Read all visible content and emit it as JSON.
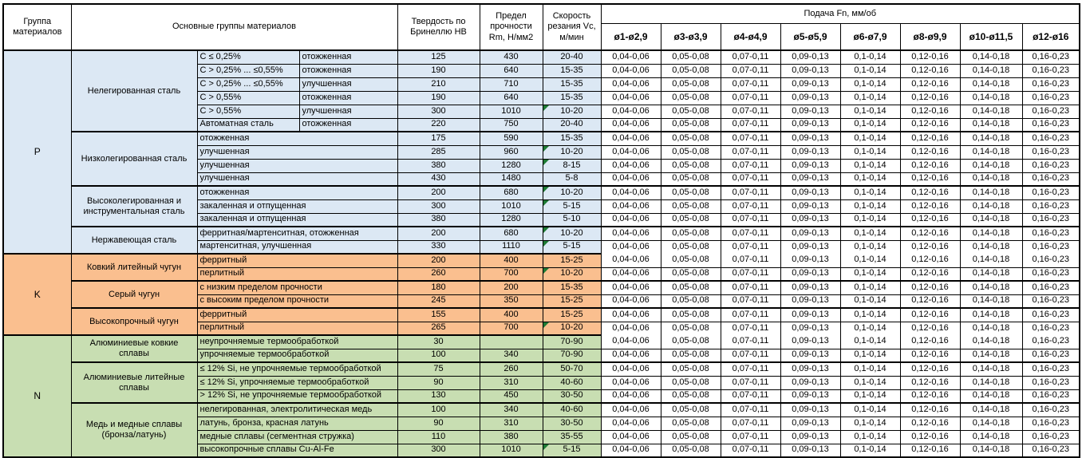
{
  "header": {
    "group": "Группа материалов",
    "main": "Основные группы материалов",
    "hardness": "Твердость по Бринеллю HB",
    "strength": "Предел прочности Rm, Н/мм2",
    "speed": "Скорость резания Vc, м/мин"
  },
  "feed": {
    "title": "Подача Fn, мм/об",
    "columns": [
      "ø1-ø2,9",
      "ø3-ø3,9",
      "ø4-ø4,9",
      "ø5-ø5,9",
      "ø6-ø7,9",
      "ø8-ø9,9",
      "ø10-ø11,5",
      "ø12-ø16"
    ],
    "values_all_rows": [
      "0,04-0,06",
      "0,05-0,08",
      "0,07-0,11",
      "0,09-0,13",
      "0,1-0,14",
      "0,12-0,16",
      "0,14-0,18",
      "0,16-0,23"
    ]
  },
  "colors": {
    "p_section": "#DCE8F4",
    "k_section": "#FABF8F",
    "n_section": "#C8DEB2",
    "flag_triangle": "#1E7B34"
  },
  "groups": [
    {
      "code": "P",
      "color": "#DCE8F4",
      "subgroups": [
        {
          "name": "Нелегированная сталь",
          "rows": [
            {
              "a": "C ≤ 0,25%",
              "b": "отожженная",
              "hb": "125",
              "rm": "430",
              "vc": "20-40"
            },
            {
              "a": "C > 0,25% ... ≤0,55%",
              "b": "отожженная",
              "hb": "190",
              "rm": "640",
              "vc": "15-35"
            },
            {
              "a": "C > 0,25% ... ≤0,55%",
              "b": "улучшенная",
              "hb": "210",
              "rm": "710",
              "vc": "15-35"
            },
            {
              "a": "C > 0,55%",
              "b": "отожженная",
              "hb": "190",
              "rm": "640",
              "vc": "15-35"
            },
            {
              "a": "C > 0,55%",
              "b": "улучшенная",
              "hb": "300",
              "rm": "1010",
              "vc": "10-20",
              "flag": true
            },
            {
              "a": "Автоматная сталь",
              "b": "отожженная",
              "hb": "220",
              "rm": "750",
              "vc": "20-40"
            }
          ]
        },
        {
          "name": "Низколегированная сталь",
          "rows": [
            {
              "a": "отожженная",
              "hb": "175",
              "rm": "590",
              "vc": "15-35"
            },
            {
              "a": "улучшенная",
              "hb": "285",
              "rm": "960",
              "vc": "10-20",
              "flag": true
            },
            {
              "a": "улучшенная",
              "hb": "380",
              "rm": "1280",
              "vc": "8-15",
              "flag": true
            },
            {
              "a": "улучшенная",
              "hb": "430",
              "rm": "1480",
              "vc": "5-8"
            }
          ]
        },
        {
          "name": "Высоколегированная и инструментальная сталь",
          "rows": [
            {
              "a": "отожженная",
              "hb": "200",
              "rm": "680",
              "vc": "10-20",
              "flag": true
            },
            {
              "a": "закаленная и отпущенная",
              "hb": "300",
              "rm": "1010",
              "vc": "5-15",
              "flag": true
            },
            {
              "a": "закаленная и отпущенная",
              "hb": "380",
              "rm": "1280",
              "vc": "5-10"
            }
          ]
        },
        {
          "name": "Нержавеющая сталь",
          "rows": [
            {
              "a": "ферритная/мартенситная, отожженная",
              "hb": "200",
              "rm": "680",
              "vc": "10-20",
              "flag": true
            },
            {
              "a": "мартенситная, улучшенная",
              "hb": "330",
              "rm": "1110",
              "vc": "5-15",
              "flag": true
            }
          ]
        }
      ]
    },
    {
      "code": "K",
      "color": "#FABF8F",
      "subgroups": [
        {
          "name": "Ковкий литейный чугун",
          "rows": [
            {
              "a": "ферритный",
              "hb": "200",
              "rm": "400",
              "vc": "15-25"
            },
            {
              "a": "перлитный",
              "hb": "260",
              "rm": "700",
              "vc": "10-20",
              "flag": true
            }
          ]
        },
        {
          "name": "Серый чугун",
          "rows": [
            {
              "a": "с низким пределом прочности",
              "hb": "180",
              "rm": "200",
              "vc": "15-35"
            },
            {
              "a": "с высоким пределом прочности",
              "hb": "245",
              "rm": "350",
              "vc": "15-25"
            }
          ]
        },
        {
          "name": "Высокопрочный чугун",
          "rows": [
            {
              "a": "ферритный",
              "hb": "155",
              "rm": "400",
              "vc": "15-25"
            },
            {
              "a": "перлитный",
              "hb": "265",
              "rm": "700",
              "vc": "10-20",
              "flag": true
            }
          ]
        }
      ]
    },
    {
      "code": "N",
      "color": "#C8DEB2",
      "subgroups": [
        {
          "name": "Алюминиевые ковкие сплавы",
          "rows": [
            {
              "a": "неупрочняемые термообработкой",
              "hb": "30",
              "rm": "",
              "vc": "70-90"
            },
            {
              "a": "упрочняемые термообработкой",
              "hb": "100",
              "rm": "340",
              "vc": "70-90"
            }
          ]
        },
        {
          "name": "Алюминиевые литейные сплавы",
          "rows": [
            {
              "a": "≤ 12% Si, не упрочняемые термообработкой",
              "hb": "75",
              "rm": "260",
              "vc": "50-70"
            },
            {
              "a": "≤ 12% Si, упрочняемые термообработкой",
              "hb": "90",
              "rm": "310",
              "vc": "40-60"
            },
            {
              "a": "> 12% Si, не упрочняемые термообработкой",
              "hb": "130",
              "rm": "450",
              "vc": "30-50"
            }
          ]
        },
        {
          "name": "Медь и медные сплавы (бронза/латунь)",
          "rows": [
            {
              "a": "нелегированная, электролитическая медь",
              "hb": "100",
              "rm": "340",
              "vc": "40-60"
            },
            {
              "a": "латунь, бронза, красная латунь",
              "hb": "90",
              "rm": "310",
              "vc": "30-50"
            },
            {
              "a": "медные сплавы (сегментная стружка)",
              "hb": "110",
              "rm": "380",
              "vc": "35-55"
            },
            {
              "a": "высокопрочные сплавы Cu-Al-Fe",
              "hb": "300",
              "rm": "1010",
              "vc": "5-15",
              "flag": true
            }
          ]
        }
      ]
    }
  ]
}
